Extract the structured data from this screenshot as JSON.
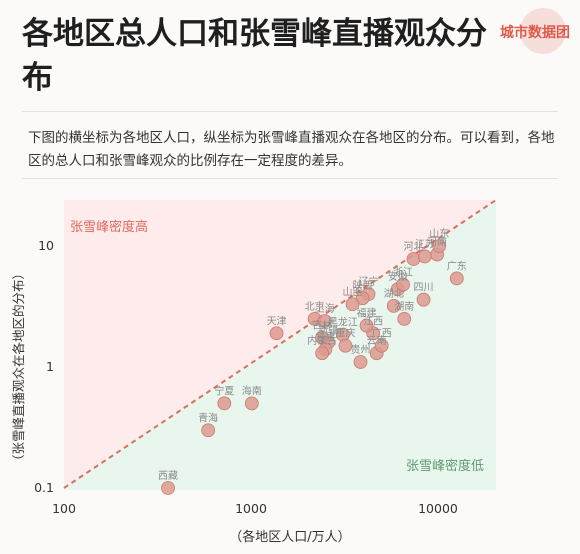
{
  "brand": {
    "name": "城市数据团"
  },
  "page": {
    "title": "各地区总人口和张雪峰直播观众分布",
    "description": "下图的横坐标为各地区人口，纵坐标为张雪峰直播观众在各地区的分布。可以看到，各地区的总人口和张雪峰观众的比例存在一定程度的差异。"
  },
  "colors": {
    "accent": "#e05a4c",
    "high_region": "#fdeceb",
    "low_region": "#e9f6ee",
    "points": "#dd9a8f",
    "point_stroke": "#c97a6e",
    "diagonal": "#d4735f",
    "high_label": "#e06a5c",
    "low_label": "#5e9a72"
  },
  "chart_data": {
    "type": "scatter",
    "xlabel": "（各地区人口/万人）",
    "ylabel": "（张雪峰直播观众在各地区的分布）",
    "x_scale": "log",
    "y_scale": "log",
    "xlim": [
      100,
      25000
    ],
    "ylim": [
      0.1,
      20
    ],
    "x_ticks": [
      100,
      1000,
      10000
    ],
    "x_tick_labels": [
      "100",
      "1000",
      "10000"
    ],
    "y_ticks": [
      0.1,
      1,
      10
    ],
    "y_tick_labels": [
      "0.1",
      "1",
      "10"
    ],
    "grid": false,
    "annotations": {
      "high": "张雪峰密度高",
      "low": "张雪峰密度低"
    },
    "points": [
      {
        "label": "西藏",
        "x": 360,
        "y": 0.1
      },
      {
        "label": "青海",
        "x": 590,
        "y": 0.3
      },
      {
        "label": "宁夏",
        "x": 720,
        "y": 0.5
      },
      {
        "label": "海南",
        "x": 1010,
        "y": 0.5
      },
      {
        "label": "天津",
        "x": 1370,
        "y": 1.9
      },
      {
        "label": "北京",
        "x": 2190,
        "y": 2.5
      },
      {
        "label": "上海",
        "x": 2480,
        "y": 2.4
      },
      {
        "label": "吉林",
        "x": 2400,
        "y": 1.75
      },
      {
        "label": "黑龙江",
        "x": 3100,
        "y": 1.85
      },
      {
        "label": "新疆",
        "x": 2590,
        "y": 1.6
      },
      {
        "label": "甘肃",
        "x": 2500,
        "y": 1.4
      },
      {
        "label": "内蒙古",
        "x": 2400,
        "y": 1.3
      },
      {
        "label": "重庆",
        "x": 3200,
        "y": 1.5
      },
      {
        "label": "贵州",
        "x": 3850,
        "y": 1.1
      },
      {
        "label": "云南",
        "x": 4700,
        "y": 1.3
      },
      {
        "label": "广西",
        "x": 5000,
        "y": 1.5
      },
      {
        "label": "江西",
        "x": 4500,
        "y": 1.9
      },
      {
        "label": "福建",
        "x": 4150,
        "y": 2.2
      },
      {
        "label": "辽宁",
        "x": 4250,
        "y": 4.0
      },
      {
        "label": "陕西",
        "x": 3950,
        "y": 3.7
      },
      {
        "label": "山西",
        "x": 3490,
        "y": 3.3
      },
      {
        "label": "安徽",
        "x": 6100,
        "y": 4.4
      },
      {
        "label": "湖北",
        "x": 5800,
        "y": 3.2
      },
      {
        "label": "浙江",
        "x": 6500,
        "y": 4.8
      },
      {
        "label": "湖南",
        "x": 6600,
        "y": 2.5
      },
      {
        "label": "四川",
        "x": 8370,
        "y": 3.6
      },
      {
        "label": "河北",
        "x": 7400,
        "y": 7.8
      },
      {
        "label": "河南",
        "x": 9900,
        "y": 8.5
      },
      {
        "label": "江苏",
        "x": 8500,
        "y": 8.2
      },
      {
        "label": "山东",
        "x": 10150,
        "y": 10.0
      },
      {
        "label": "广东",
        "x": 12600,
        "y": 5.4
      }
    ]
  }
}
